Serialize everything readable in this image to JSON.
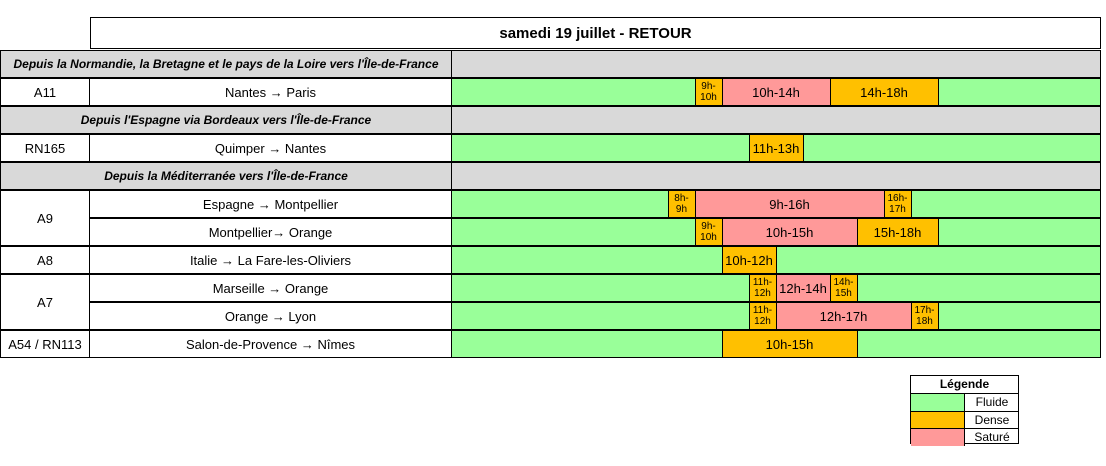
{
  "title": "samedi 19 juillet  - RETOUR",
  "sections": [
    "Depuis la Normandie, la Bretagne et le pays de la Loire vers l'Île-de-France",
    "Depuis l'Espagne via Bordeaux vers l'Île-de-France",
    "Depuis la Méditerranée vers l'Île-de-France"
  ],
  "roads": [
    "A11",
    "RN165",
    "A9",
    "A8",
    "A7",
    "A54 / RN113"
  ],
  "routes": [
    {
      "route": "Nantes → Paris",
      "segments": [
        {
          "label": "9h-\n10h",
          "level": "dense",
          "start": 9,
          "end": 10
        },
        {
          "label": "10h-14h",
          "level": "sature",
          "start": 10,
          "end": 14
        },
        {
          "label": "14h-18h",
          "level": "dense",
          "start": 14,
          "end": 18
        }
      ]
    },
    {
      "route": "Quimper → Nantes",
      "segments": [
        {
          "label": "11h-13h",
          "level": "dense",
          "start": 11,
          "end": 13
        }
      ]
    },
    {
      "route": "Espagne → Montpellier",
      "segments": [
        {
          "label": "8h-\n9h",
          "level": "dense",
          "start": 8,
          "end": 9
        },
        {
          "label": "9h-16h",
          "level": "sature",
          "start": 9,
          "end": 16
        },
        {
          "label": "16h-\n17h",
          "level": "dense",
          "start": 16,
          "end": 17
        }
      ]
    },
    {
      "route": "Montpellier→ Orange",
      "segments": [
        {
          "label": "9h-\n10h",
          "level": "dense",
          "start": 9,
          "end": 10
        },
        {
          "label": "10h-15h",
          "level": "sature",
          "start": 10,
          "end": 15
        },
        {
          "label": "15h-18h",
          "level": "dense",
          "start": 15,
          "end": 18
        }
      ]
    },
    {
      "route": "Italie → La Fare-les-Oliviers",
      "segments": [
        {
          "label": "10h-12h",
          "level": "dense",
          "start": 10,
          "end": 12
        }
      ]
    },
    {
      "route": "Marseille → Orange",
      "segments": [
        {
          "label": "11h-\n12h",
          "level": "dense",
          "start": 11,
          "end": 12
        },
        {
          "label": "12h-14h",
          "level": "sature",
          "start": 12,
          "end": 14
        },
        {
          "label": "14h-\n15h",
          "level": "dense",
          "start": 14,
          "end": 15
        }
      ]
    },
    {
      "route": "Orange → Lyon",
      "segments": [
        {
          "label": "11h-\n12h",
          "level": "dense",
          "start": 11,
          "end": 12
        },
        {
          "label": "12h-17h",
          "level": "sature",
          "start": 12,
          "end": 17
        },
        {
          "label": "17h-\n18h",
          "level": "dense",
          "start": 17,
          "end": 18
        }
      ]
    },
    {
      "route": "Salon-de-Provence → Nîmes",
      "segments": [
        {
          "label": "10h-15h",
          "level": "dense",
          "start": 10,
          "end": 15
        }
      ]
    }
  ],
  "legend": {
    "title": "Légende",
    "items": [
      {
        "label": "Fluide",
        "color": "#99ff99"
      },
      {
        "label": "Dense",
        "color": "#ffc000"
      },
      {
        "label": "Saturé",
        "color": "#ff9999"
      }
    ]
  }
}
